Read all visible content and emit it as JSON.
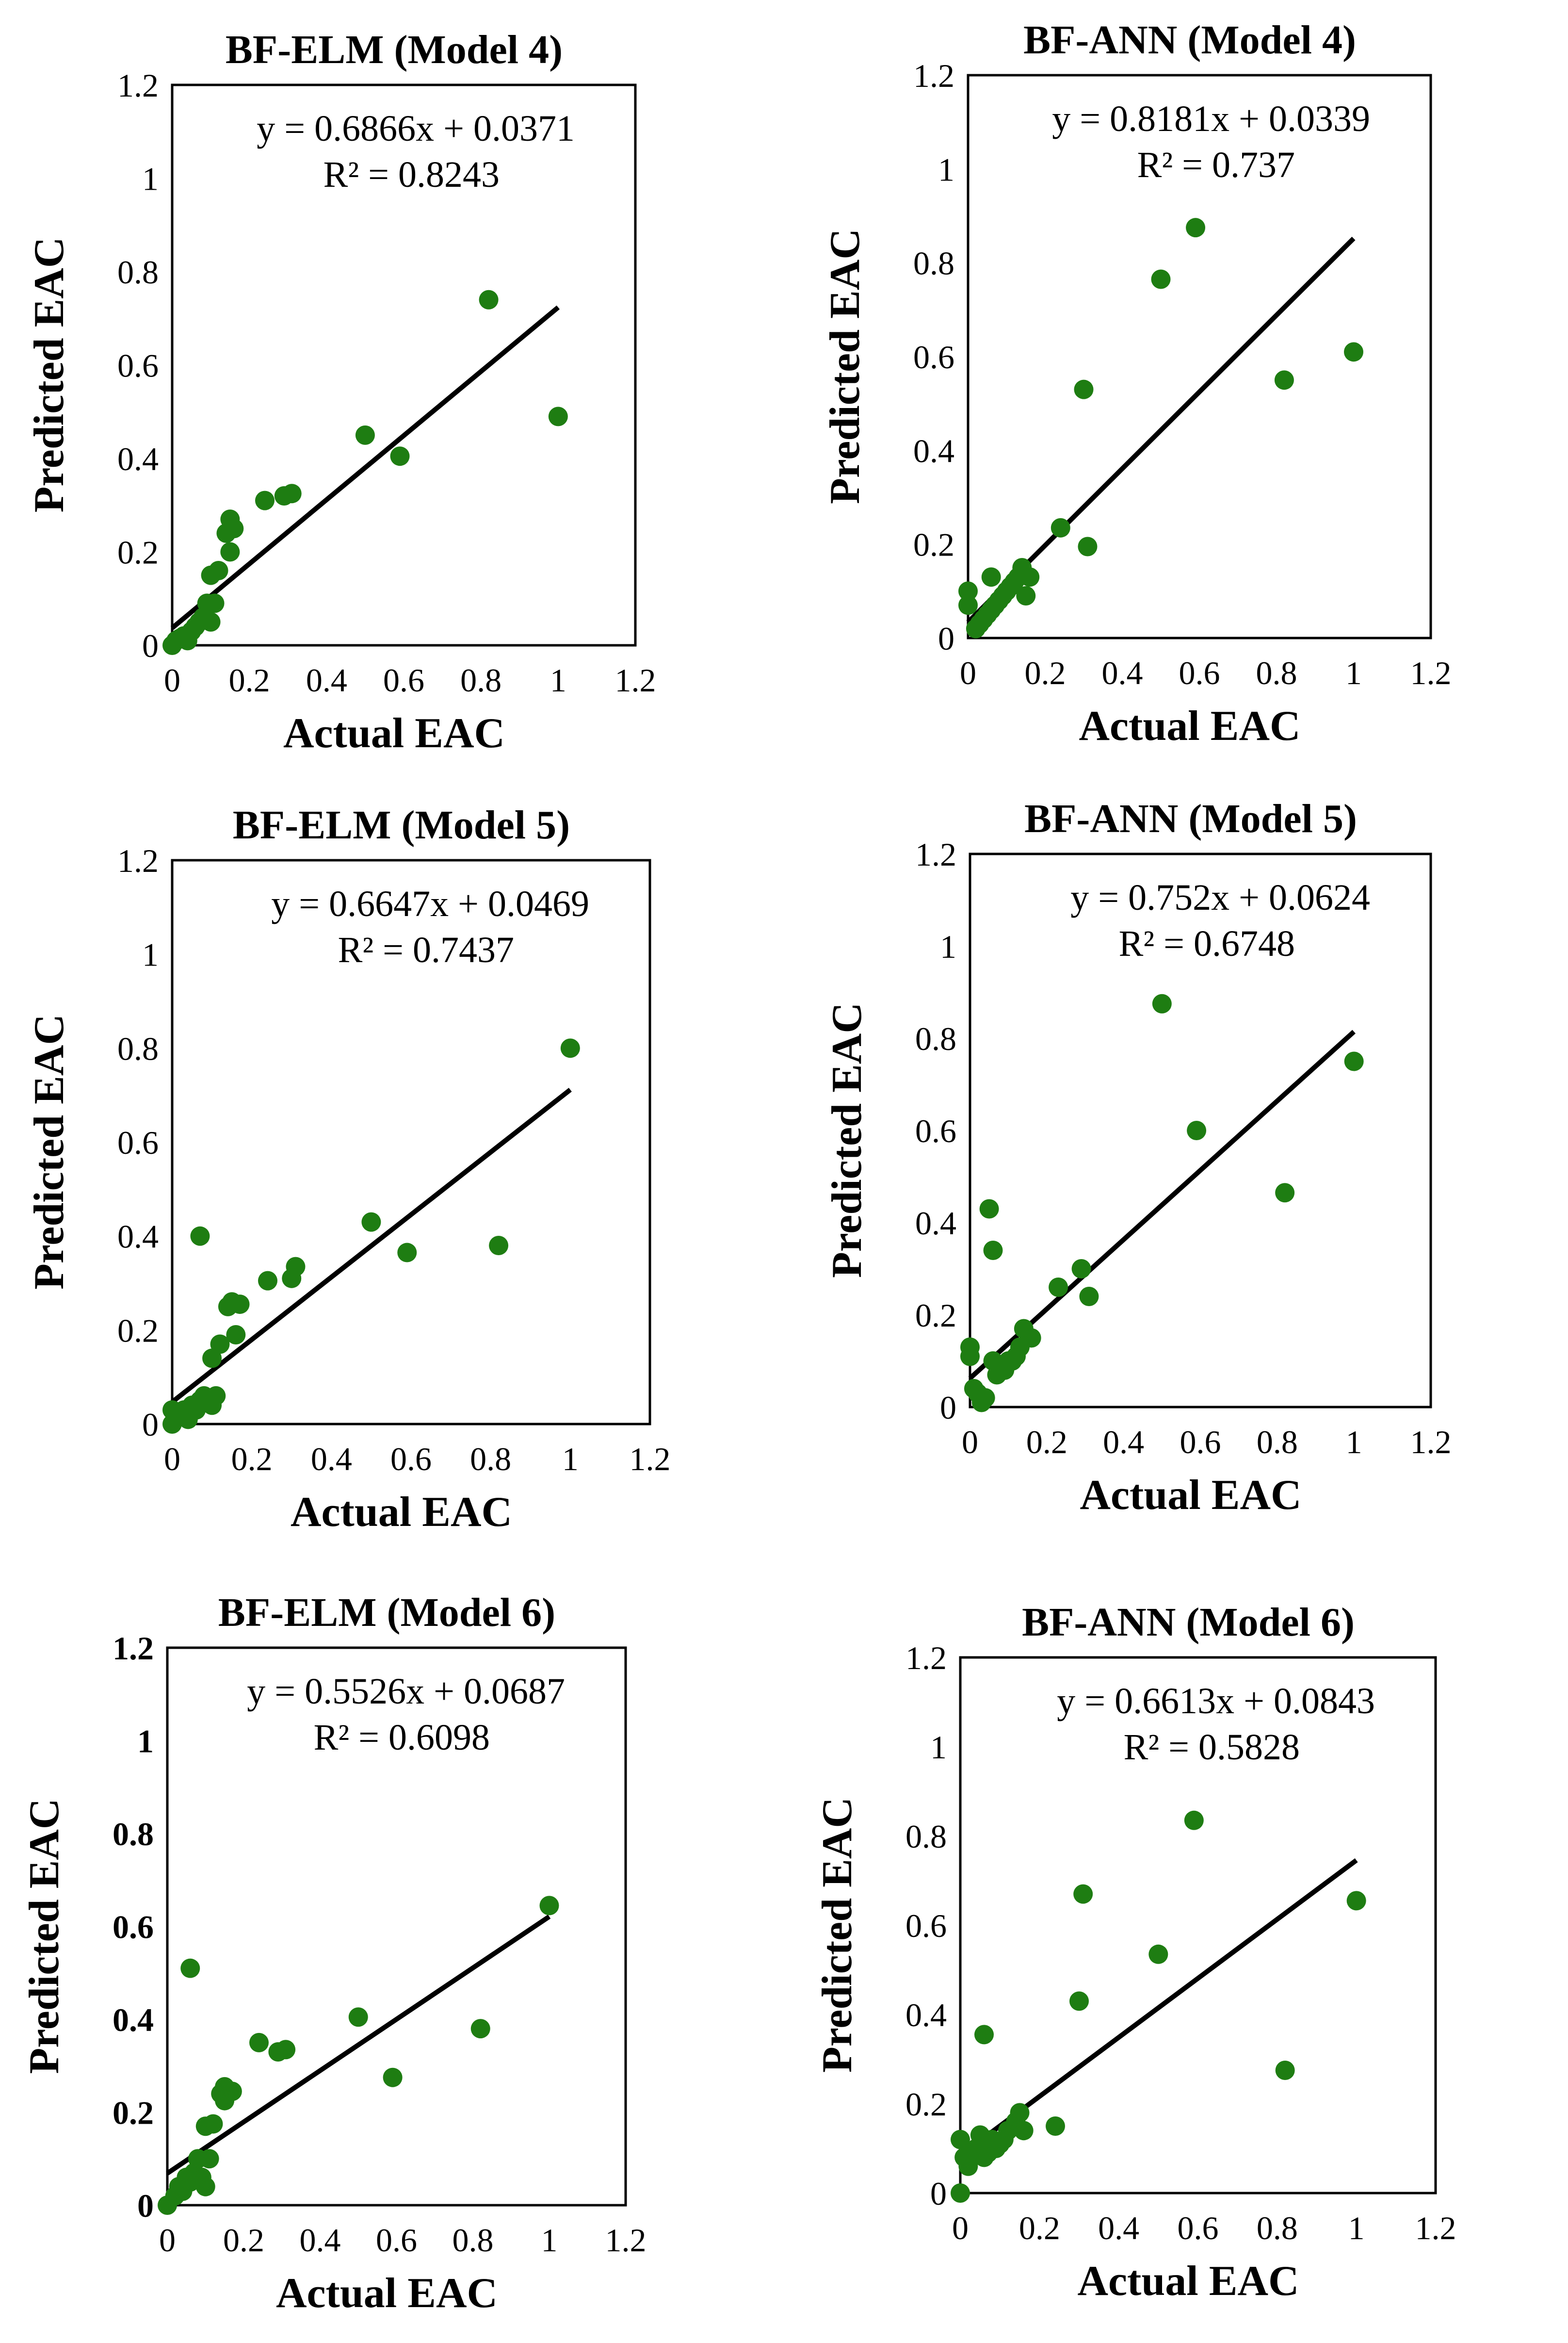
{
  "style": {
    "marker_color": "#1e7d12",
    "trendline_color": "#000000"
  },
  "chart_data": [
    {
      "type": "scatter",
      "title": "BF-ELM (Model 4)",
      "xlabel": "Actual EAC",
      "ylabel": "Predicted EAC",
      "xlim": [
        0,
        1.2
      ],
      "ylim": [
        0,
        1.2
      ],
      "xticks": [
        "0",
        "0.2",
        "0.4",
        "0.6",
        "0.8",
        "1",
        "1.2"
      ],
      "yticks": [
        "0",
        "0.2",
        "0.4",
        "0.6",
        "0.8",
        "1",
        "1.2"
      ],
      "equation": "y = 0.6866x + 0.0371",
      "r2": "R² = 0.8243",
      "trendline": {
        "slope": 0.6866,
        "intercept": 0.0371,
        "x_range": [
          0,
          1
        ]
      },
      "points": [
        [
          0,
          0
        ],
        [
          0.01,
          0.01
        ],
        [
          0.02,
          0.015
        ],
        [
          0.03,
          0.02
        ],
        [
          0.04,
          0.01
        ],
        [
          0.05,
          0.03
        ],
        [
          0.06,
          0.04
        ],
        [
          0.07,
          0.05
        ],
        [
          0.08,
          0.06
        ],
        [
          0.09,
          0.09
        ],
        [
          0.1,
          0.05
        ],
        [
          0.11,
          0.09
        ],
        [
          0.1,
          0.15
        ],
        [
          0.12,
          0.16
        ],
        [
          0.14,
          0.24
        ],
        [
          0.15,
          0.27
        ],
        [
          0.15,
          0.2
        ],
        [
          0.16,
          0.25
        ],
        [
          0.24,
          0.31
        ],
        [
          0.29,
          0.32
        ],
        [
          0.31,
          0.325
        ],
        [
          0.5,
          0.45
        ],
        [
          0.59,
          0.405
        ],
        [
          0.82,
          0.74
        ],
        [
          1.0,
          0.49
        ]
      ]
    },
    {
      "type": "scatter",
      "title": "BF-ANN (Model 4)",
      "xlabel": "Actual EAC",
      "ylabel": "Predicted EAC",
      "xlim": [
        0,
        1.2
      ],
      "ylim": [
        0,
        1.2
      ],
      "xticks": [
        "0",
        "0.2",
        "0.4",
        "0.6",
        "0.8",
        "1",
        "1.2"
      ],
      "yticks": [
        "0",
        "0.2",
        "0.4",
        "0.6",
        "0.8",
        "1",
        "1.2"
      ],
      "equation": "y = 0.8181x + 0.0339",
      "r2": "R² = 0.737",
      "trendline": {
        "slope": 0.8181,
        "intercept": 0.0339,
        "x_range": [
          0,
          1
        ]
      },
      "points": [
        [
          0,
          0.1
        ],
        [
          0,
          0.07
        ],
        [
          0.02,
          0.02
        ],
        [
          0.03,
          0.03
        ],
        [
          0.04,
          0.04
        ],
        [
          0.05,
          0.05
        ],
        [
          0.06,
          0.06
        ],
        [
          0.06,
          0.13
        ],
        [
          0.07,
          0.07
        ],
        [
          0.08,
          0.08
        ],
        [
          0.09,
          0.09
        ],
        [
          0.1,
          0.1
        ],
        [
          0.11,
          0.11
        ],
        [
          0.12,
          0.12
        ],
        [
          0.13,
          0.13
        ],
        [
          0.14,
          0.15
        ],
        [
          0.15,
          0.09
        ],
        [
          0.16,
          0.13
        ],
        [
          0.24,
          0.235
        ],
        [
          0.3,
          0.53
        ],
        [
          0.31,
          0.195
        ],
        [
          0.5,
          0.765
        ],
        [
          0.59,
          0.875
        ],
        [
          0.82,
          0.55
        ],
        [
          1.0,
          0.61
        ]
      ]
    },
    {
      "type": "scatter",
      "title": "BF-ELM (Model 5)",
      "xlabel": "Actual EAC",
      "ylabel": "Predicted EAC",
      "xlim": [
        0,
        1.2
      ],
      "ylim": [
        0,
        1.2
      ],
      "xticks": [
        "0",
        "0.2",
        "0.4",
        "0.6",
        "0.8",
        "1",
        "1.2"
      ],
      "yticks": [
        "0",
        "0.2",
        "0.4",
        "0.6",
        "0.8",
        "1",
        "1.2"
      ],
      "equation": "y = 0.6647x + 0.0469",
      "r2": "R² = 0.7437",
      "trendline": {
        "slope": 0.6647,
        "intercept": 0.0469,
        "x_range": [
          0,
          1
        ]
      },
      "points": [
        [
          0,
          0
        ],
        [
          0,
          0.03
        ],
        [
          0.02,
          0.02
        ],
        [
          0.03,
          0.03
        ],
        [
          0.04,
          0.01
        ],
        [
          0.05,
          0.04
        ],
        [
          0.06,
          0.03
        ],
        [
          0.07,
          0.05
        ],
        [
          0.07,
          0.4
        ],
        [
          0.08,
          0.06
        ],
        [
          0.09,
          0.05
        ],
        [
          0.1,
          0.04
        ],
        [
          0.1,
          0.14
        ],
        [
          0.11,
          0.06
        ],
        [
          0.12,
          0.17
        ],
        [
          0.14,
          0.25
        ],
        [
          0.15,
          0.26
        ],
        [
          0.16,
          0.19
        ],
        [
          0.17,
          0.255
        ],
        [
          0.24,
          0.305
        ],
        [
          0.3,
          0.31
        ],
        [
          0.31,
          0.335
        ],
        [
          0.5,
          0.43
        ],
        [
          0.59,
          0.365
        ],
        [
          0.82,
          0.38
        ],
        [
          1.0,
          0.8
        ]
      ]
    },
    {
      "type": "scatter",
      "title": "BF-ANN (Model 5)",
      "xlabel": "Actual EAC",
      "ylabel": "Predicted EAC",
      "xlim": [
        0,
        1.2
      ],
      "ylim": [
        0,
        1.2
      ],
      "xticks": [
        "0",
        "0.2",
        "0.4",
        "0.6",
        "0.8",
        "1",
        "1.2"
      ],
      "yticks": [
        "0",
        "0.2",
        "0.4",
        "0.6",
        "0.8",
        "1",
        "1.2"
      ],
      "equation": "y = 0.752x + 0.0624",
      "r2": "R² = 0.6748",
      "trendline": {
        "slope": 0.752,
        "intercept": 0.0624,
        "x_range": [
          0,
          1
        ]
      },
      "points": [
        [
          0,
          0.13
        ],
        [
          0,
          0.11
        ],
        [
          0.01,
          0.04
        ],
        [
          0.02,
          0.03
        ],
        [
          0.03,
          0.01
        ],
        [
          0.04,
          0.02
        ],
        [
          0.05,
          0.43
        ],
        [
          0.06,
          0.1
        ],
        [
          0.06,
          0.34
        ],
        [
          0.07,
          0.07
        ],
        [
          0.08,
          0.09
        ],
        [
          0.09,
          0.08
        ],
        [
          0.1,
          0.1
        ],
        [
          0.11,
          0.1
        ],
        [
          0.12,
          0.11
        ],
        [
          0.13,
          0.13
        ],
        [
          0.14,
          0.17
        ],
        [
          0.16,
          0.15
        ],
        [
          0.23,
          0.26
        ],
        [
          0.29,
          0.3
        ],
        [
          0.31,
          0.24
        ],
        [
          0.5,
          0.875
        ],
        [
          0.59,
          0.6
        ],
        [
          0.82,
          0.465
        ],
        [
          1.0,
          0.75
        ]
      ]
    },
    {
      "type": "scatter",
      "title": "BF-ELM (Model 6)",
      "xlabel": "Actual EAC",
      "ylabel": "Predicted EAC",
      "xlim": [
        0,
        1.2
      ],
      "ylim": [
        0,
        1.2
      ],
      "xticks": [
        "0",
        "0.2",
        "0.4",
        "0.6",
        "0.8",
        "1",
        "1.2"
      ],
      "yticks": [
        "0",
        "0.2",
        "0.4",
        "0.6",
        "0.8",
        "1",
        "1.2"
      ],
      "equation": "y = 0.5526x + 0.0687",
      "r2": "R² = 0.6098",
      "trendline": {
        "slope": 0.5526,
        "intercept": 0.0687,
        "x_range": [
          0,
          1
        ]
      },
      "points": [
        [
          0,
          0
        ],
        [
          0.02,
          0.02
        ],
        [
          0.03,
          0.04
        ],
        [
          0.04,
          0.03
        ],
        [
          0.05,
          0.06
        ],
        [
          0.06,
          0.05
        ],
        [
          0.06,
          0.51
        ],
        [
          0.07,
          0.07
        ],
        [
          0.08,
          0.1
        ],
        [
          0.09,
          0.06
        ],
        [
          0.1,
          0.04
        ],
        [
          0.1,
          0.17
        ],
        [
          0.11,
          0.1
        ],
        [
          0.12,
          0.175
        ],
        [
          0.14,
          0.24
        ],
        [
          0.15,
          0.255
        ],
        [
          0.15,
          0.225
        ],
        [
          0.17,
          0.245
        ],
        [
          0.24,
          0.35
        ],
        [
          0.29,
          0.33
        ],
        [
          0.31,
          0.335
        ],
        [
          0.5,
          0.405
        ],
        [
          0.59,
          0.275
        ],
        [
          0.82,
          0.38
        ],
        [
          1.0,
          0.645
        ]
      ]
    },
    {
      "type": "scatter",
      "title": "BF-ANN (Model 6)",
      "xlabel": "Actual EAC",
      "ylabel": "Predicted EAC",
      "xlim": [
        0,
        1.2
      ],
      "ylim": [
        0,
        1.2
      ],
      "xticks": [
        "0",
        "0.2",
        "0.4",
        "0.6",
        "0.8",
        "1",
        "1.2"
      ],
      "yticks": [
        "0",
        "0.2",
        "0.4",
        "0.6",
        "0.8",
        "1",
        "1.2"
      ],
      "equation": "y = 0.6613x + 0.0843",
      "r2": "R² = 0.5828",
      "trendline": {
        "slope": 0.6613,
        "intercept": 0.0843,
        "x_range": [
          0,
          1
        ]
      },
      "points": [
        [
          0,
          0
        ],
        [
          0,
          0.12
        ],
        [
          0.01,
          0.08
        ],
        [
          0.02,
          0.06
        ],
        [
          0.03,
          0.09
        ],
        [
          0.04,
          0.1
        ],
        [
          0.05,
          0.13
        ],
        [
          0.06,
          0.08
        ],
        [
          0.06,
          0.355
        ],
        [
          0.07,
          0.09
        ],
        [
          0.08,
          0.12
        ],
        [
          0.09,
          0.1
        ],
        [
          0.1,
          0.11
        ],
        [
          0.11,
          0.12
        ],
        [
          0.12,
          0.14
        ],
        [
          0.14,
          0.16
        ],
        [
          0.15,
          0.18
        ],
        [
          0.16,
          0.14
        ],
        [
          0.24,
          0.15
        ],
        [
          0.3,
          0.43
        ],
        [
          0.31,
          0.67
        ],
        [
          0.5,
          0.535
        ],
        [
          0.59,
          0.835
        ],
        [
          0.82,
          0.275
        ],
        [
          1.0,
          0.655
        ]
      ]
    }
  ]
}
